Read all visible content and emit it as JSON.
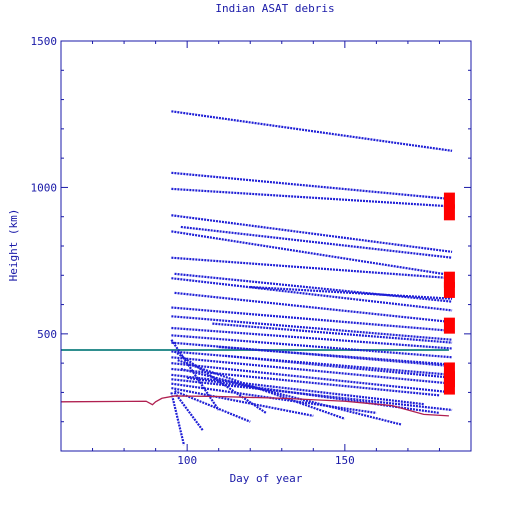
{
  "chart_data": {
    "type": "scatter",
    "title": "Indian ASAT debris",
    "xlabel": "Day of year",
    "ylabel": "Height (km)",
    "xlim": [
      60,
      190
    ],
    "ylim": [
      100,
      1500
    ],
    "x_ticks": [
      100,
      150
    ],
    "y_ticks": [
      500,
      1000,
      1500
    ],
    "grid": false,
    "colors": {
      "axes": "#1a1aa8",
      "debris": "#1f1fd6",
      "reference_line": "#2f8f8f",
      "host_object": "#b02050",
      "markers": "#ff0000"
    },
    "reference_line": {
      "y": 445,
      "x": [
        60,
        183
      ]
    },
    "host_object_track": {
      "x": [
        60,
        87,
        89,
        90,
        92,
        96,
        110,
        130,
        150,
        165,
        170,
        175,
        183
      ],
      "y": [
        268,
        270,
        258,
        268,
        280,
        288,
        286,
        280,
        270,
        255,
        240,
        225,
        220
      ]
    },
    "debris_tracks": [
      {
        "x": [
          95,
          184
        ],
        "y": [
          1260,
          1125
        ]
      },
      {
        "x": [
          95,
          184
        ],
        "y": [
          1050,
          960
        ]
      },
      {
        "x": [
          95,
          184
        ],
        "y": [
          995,
          935
        ]
      },
      {
        "x": [
          95,
          184
        ],
        "y": [
          905,
          780
        ]
      },
      {
        "x": [
          98,
          184
        ],
        "y": [
          865,
          760
        ]
      },
      {
        "x": [
          95,
          184
        ],
        "y": [
          850,
          700
        ]
      },
      {
        "x": [
          95,
          184
        ],
        "y": [
          760,
          690
        ]
      },
      {
        "x": [
          96,
          184
        ],
        "y": [
          705,
          610
        ]
      },
      {
        "x": [
          95,
          184
        ],
        "y": [
          690,
          580
        ]
      },
      {
        "x": [
          120,
          184
        ],
        "y": [
          660,
          620
        ]
      },
      {
        "x": [
          96,
          184
        ],
        "y": [
          640,
          540
        ]
      },
      {
        "x": [
          95,
          184
        ],
        "y": [
          590,
          510
        ]
      },
      {
        "x": [
          95,
          184
        ],
        "y": [
          560,
          480
        ]
      },
      {
        "x": [
          95,
          184
        ],
        "y": [
          520,
          450
        ]
      },
      {
        "x": [
          95,
          184
        ],
        "y": [
          495,
          420
        ]
      },
      {
        "x": [
          95,
          184
        ],
        "y": [
          470,
          390
        ]
      },
      {
        "x": [
          95,
          184
        ],
        "y": [
          440,
          360
        ]
      },
      {
        "x": [
          95,
          184
        ],
        "y": [
          420,
          330
        ]
      },
      {
        "x": [
          95,
          184
        ],
        "y": [
          400,
          300
        ]
      },
      {
        "x": [
          95,
          180
        ],
        "y": [
          380,
          290
        ]
      },
      {
        "x": [
          95,
          175
        ],
        "y": [
          360,
          260
        ]
      },
      {
        "x": [
          95,
          184
        ],
        "y": [
          345,
          240
        ]
      },
      {
        "x": [
          95,
          160
        ],
        "y": [
          330,
          230
        ]
      },
      {
        "x": [
          95,
          140
        ],
        "y": [
          315,
          220
        ]
      },
      {
        "x": [
          96,
          120
        ],
        "y": [
          305,
          200
        ]
      },
      {
        "x": [
          96,
          105
        ],
        "y": [
          300,
          170
        ]
      },
      {
        "x": [
          95,
          110
        ],
        "y": [
          480,
          240
        ]
      },
      {
        "x": [
          96,
          125
        ],
        "y": [
          440,
          230
        ]
      },
      {
        "x": [
          97,
          150
        ],
        "y": [
          410,
          210
        ]
      },
      {
        "x": [
          98,
          168
        ],
        "y": [
          380,
          190
        ]
      },
      {
        "x": [
          100,
          180
        ],
        "y": [
          350,
          230
        ]
      },
      {
        "x": [
          95,
          99
        ],
        "y": [
          300,
          120
        ]
      },
      {
        "x": [
          108,
          184
        ],
        "y": [
          535,
          470
        ]
      },
      {
        "x": [
          110,
          184
        ],
        "y": [
          455,
          395
        ]
      },
      {
        "x": [
          112,
          184
        ],
        "y": [
          425,
          350
        ]
      }
    ],
    "markers": [
      {
        "x": 183,
        "y": 955
      },
      {
        "x": 183,
        "y": 915
      },
      {
        "x": 183,
        "y": 685
      },
      {
        "x": 183,
        "y": 650
      },
      {
        "x": 183,
        "y": 528
      },
      {
        "x": 183,
        "y": 375
      },
      {
        "x": 183,
        "y": 345
      },
      {
        "x": 183,
        "y": 320
      }
    ]
  }
}
